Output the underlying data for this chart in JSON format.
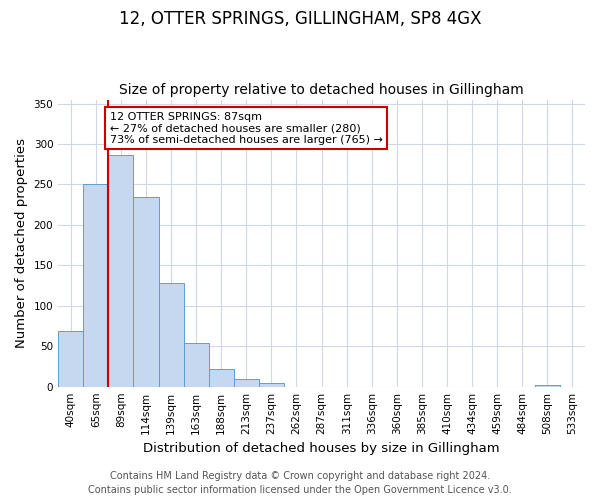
{
  "title": "12, OTTER SPRINGS, GILLINGHAM, SP8 4GX",
  "subtitle": "Size of property relative to detached houses in Gillingham",
  "xlabel": "Distribution of detached houses by size in Gillingham",
  "ylabel": "Number of detached properties",
  "bin_labels": [
    "40sqm",
    "65sqm",
    "89sqm",
    "114sqm",
    "139sqm",
    "163sqm",
    "188sqm",
    "213sqm",
    "237sqm",
    "262sqm",
    "287sqm",
    "311sqm",
    "336sqm",
    "360sqm",
    "385sqm",
    "410sqm",
    "434sqm",
    "459sqm",
    "484sqm",
    "508sqm",
    "533sqm"
  ],
  "bar_values": [
    69,
    250,
    286,
    235,
    128,
    54,
    22,
    10,
    5,
    0,
    0,
    0,
    0,
    0,
    0,
    0,
    0,
    0,
    0,
    2,
    0
  ],
  "bar_color": "#c5d8ef",
  "bar_edge_color": "#5a9fd4",
  "marker_bin_index": 2,
  "vline_color": "#cc0000",
  "ylim": [
    0,
    355
  ],
  "yticks": [
    0,
    50,
    100,
    150,
    200,
    250,
    300,
    350
  ],
  "annotation_title": "12 OTTER SPRINGS: 87sqm",
  "annotation_line1": "← 27% of detached houses are smaller (280)",
  "annotation_line2": "73% of semi-detached houses are larger (765) →",
  "annotation_box_color": "#ffffff",
  "annotation_box_edge": "#cc0000",
  "footer1": "Contains HM Land Registry data © Crown copyright and database right 2024.",
  "footer2": "Contains public sector information licensed under the Open Government Licence v3.0.",
  "bg_color": "#ffffff",
  "grid_color": "#d0d8e8",
  "title_fontsize": 12,
  "subtitle_fontsize": 10,
  "axis_label_fontsize": 9.5,
  "tick_fontsize": 7.5,
  "footer_fontsize": 7
}
